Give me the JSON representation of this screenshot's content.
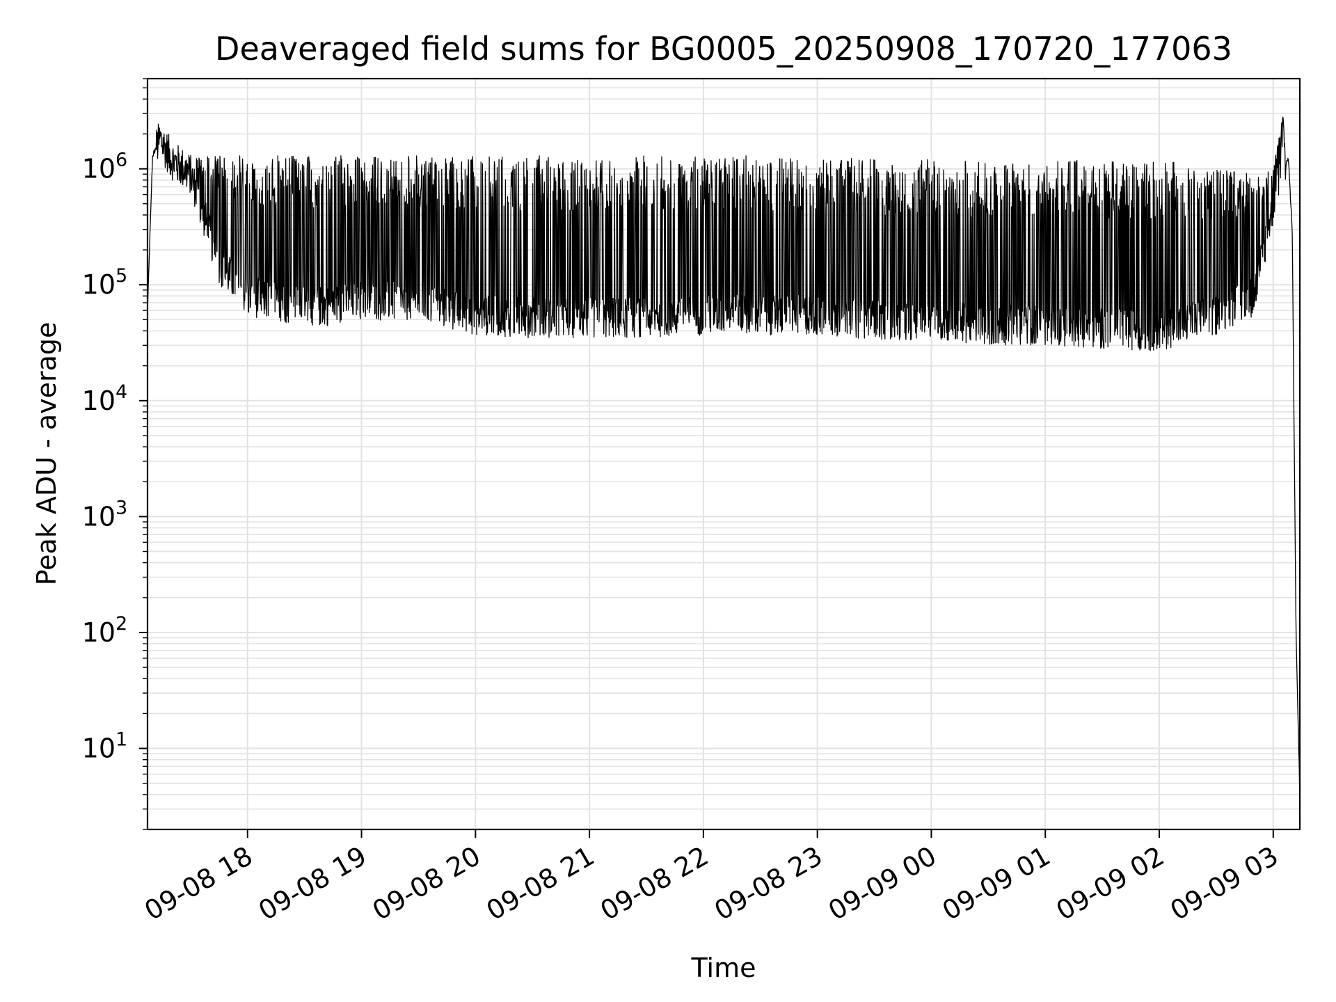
{
  "chart_data": {
    "type": "line",
    "title": "Deaveraged field sums for BG0005_20250908_170720_177063",
    "xlabel": "Time",
    "ylabel": "Peak ADU - average",
    "yscale": "log",
    "ylim": [
      2,
      6000000
    ],
    "xlim": [
      "2025-09-08 17:07:20",
      "2025-09-09 03:14:00"
    ],
    "grid": true,
    "grid_minor": true,
    "line_color": "#000000",
    "x_ticks": [
      {
        "value": "2025-09-08 18:00",
        "label": "09-08 18"
      },
      {
        "value": "2025-09-08 19:00",
        "label": "09-08 19"
      },
      {
        "value": "2025-09-08 20:00",
        "label": "09-08 20"
      },
      {
        "value": "2025-09-08 21:00",
        "label": "09-08 21"
      },
      {
        "value": "2025-09-08 22:00",
        "label": "09-08 22"
      },
      {
        "value": "2025-09-08 23:00",
        "label": "09-08 23"
      },
      {
        "value": "2025-09-09 00:00",
        "label": "09-09 00"
      },
      {
        "value": "2025-09-09 01:00",
        "label": "09-09 01"
      },
      {
        "value": "2025-09-09 02:00",
        "label": "09-09 02"
      },
      {
        "value": "2025-09-09 03:00",
        "label": "09-09 03"
      }
    ],
    "y_ticks": [
      {
        "value": 10,
        "base": "10",
        "exp": "1"
      },
      {
        "value": 100,
        "base": "10",
        "exp": "2"
      },
      {
        "value": 1000,
        "base": "10",
        "exp": "3"
      },
      {
        "value": 10000,
        "base": "10",
        "exp": "4"
      },
      {
        "value": 100000,
        "base": "10",
        "exp": "5"
      },
      {
        "value": 1000000,
        "base": "10",
        "exp": "6"
      }
    ],
    "series": [
      {
        "x": [
          "2025-09-08 17:07:20",
          "2025-09-08 17:10",
          "2025-09-08 17:14",
          "2025-09-08 17:20",
          "2025-09-08 17:30",
          "2025-09-08 17:45",
          "2025-09-08 18:00",
          "2025-09-08 18:20",
          "2025-09-08 18:40",
          "2025-09-08 19:00",
          "2025-09-08 19:30",
          "2025-09-08 20:00",
          "2025-09-08 20:30",
          "2025-09-08 21:00",
          "2025-09-08 21:30",
          "2025-09-08 22:00",
          "2025-09-08 22:30",
          "2025-09-08 23:00",
          "2025-09-08 23:30",
          "2025-09-09 00:00",
          "2025-09-09 00:30",
          "2025-09-09 01:00",
          "2025-09-09 01:30",
          "2025-09-09 02:00",
          "2025-09-09 02:30",
          "2025-09-09 02:50",
          "2025-09-09 03:00",
          "2025-09-09 03:05",
          "2025-09-09 03:08",
          "2025-09-09 03:10",
          "2025-09-09 03:12",
          "2025-09-09 03:14"
        ],
        "baseline": [
          60000,
          1300000,
          1800000,
          1200000,
          900000,
          150000,
          80000,
          70000,
          65000,
          75000,
          70000,
          55000,
          52000,
          52000,
          52000,
          55000,
          55000,
          55000,
          50000,
          50000,
          45000,
          45000,
          42000,
          40000,
          55000,
          80000,
          500000,
          1200000,
          1200000,
          300000,
          100,
          4
        ],
        "peaks": [
          1300000,
          1300000,
          1300000,
          1300000,
          1300000,
          1300000,
          1300000,
          1300000,
          1300000,
          1300000,
          1300000,
          1300000,
          1300000,
          1300000,
          1300000,
          1300000,
          1300000,
          1300000,
          1200000,
          1200000,
          1200000,
          1200000,
          1200000,
          1200000,
          1000000,
          900000,
          1000000,
          3000000,
          1300000,
          1300000,
          100,
          4
        ]
      }
    ]
  }
}
